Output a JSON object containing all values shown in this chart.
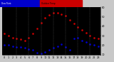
{
  "background_color": "#c8c8c8",
  "plot_bg_color": "#000000",
  "hours": [
    0,
    1,
    2,
    3,
    4,
    5,
    6,
    7,
    8,
    9,
    10,
    11,
    12,
    13,
    14,
    15,
    16,
    17,
    18,
    19,
    20,
    21,
    22,
    23
  ],
  "temp_values": [
    32,
    30,
    28,
    27,
    26,
    25,
    28,
    32,
    38,
    44,
    49,
    52,
    54,
    54,
    53,
    51,
    47,
    43,
    39,
    36,
    33,
    30,
    28,
    27
  ],
  "dew_values": [
    20,
    20,
    19,
    18,
    18,
    17,
    16,
    15,
    12,
    11,
    13,
    15,
    17,
    19,
    21,
    18,
    15,
    27,
    28,
    25,
    23,
    21,
    20,
    19
  ],
  "temp_color": "#cc0000",
  "dew_color": "#0000cc",
  "grid_color": "#666666",
  "ylim": [
    10,
    60
  ],
  "ytick_vals": [
    10,
    20,
    30,
    40,
    50,
    60
  ],
  "ytick_labels": [
    "10",
    "20",
    "30",
    "40",
    "50",
    "60"
  ],
  "xlim_min": -0.5,
  "xlim_max": 23.5,
  "xtick_hours": [
    0,
    1,
    2,
    3,
    4,
    5,
    6,
    7,
    8,
    9,
    10,
    11,
    12,
    13,
    14,
    15,
    16,
    17,
    18,
    19,
    20,
    21,
    22,
    23
  ],
  "xtick_labels": [
    "0",
    "1",
    "2",
    "3",
    "4",
    "5",
    "6",
    "7",
    "8",
    "9",
    "10",
    "11",
    "12",
    "13",
    "14",
    "15",
    "16",
    "17",
    "18",
    "19",
    "20",
    "21",
    "22",
    "23"
  ],
  "grid_hours": [
    3,
    6,
    9,
    12,
    15,
    18,
    21
  ],
  "legend_temp_color": "#cc0000",
  "legend_dew_color": "#0000cc",
  "markersize": 1.8,
  "tick_fontsize": 2.5,
  "legend_fontsize": 2.5
}
